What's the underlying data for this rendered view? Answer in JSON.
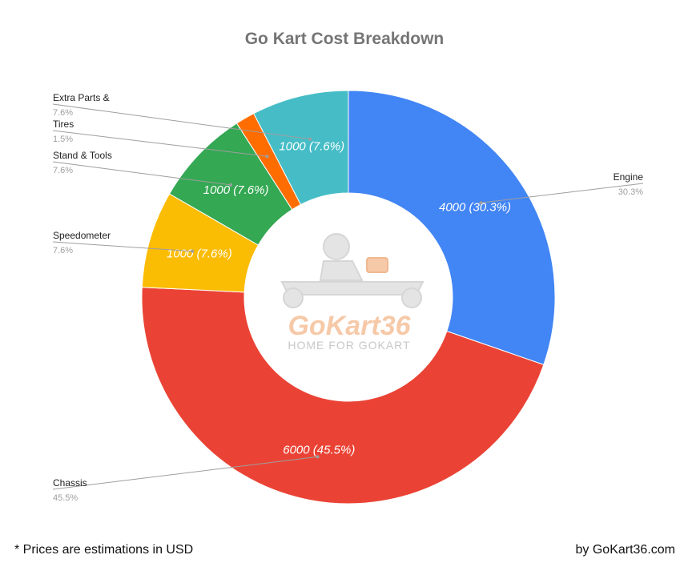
{
  "chart_data": {
    "type": "pie",
    "variant": "donut",
    "title": "Go Kart Cost Breakdown",
    "slices": [
      {
        "name": "Engine",
        "value": 4000,
        "label": "4000 (30.3%)",
        "pct_label": "30.3%",
        "color": "#4285f4"
      },
      {
        "name": "Chassis",
        "value": 6000,
        "label": "6000 (45.5%)",
        "pct_label": "45.5%",
        "color": "#ea4335"
      },
      {
        "name": "Speedometer",
        "value": 1000,
        "label": "1000 (7.6%)",
        "pct_label": "7.6%",
        "color": "#fbbc04"
      },
      {
        "name": "Stand & Tools",
        "value": 1000,
        "label": "1000 (7.6%)",
        "pct_label": "7.6%",
        "color": "#34a853"
      },
      {
        "name": "Tires",
        "value": 200,
        "label": "",
        "pct_label": "1.5%",
        "color": "#ff6d01"
      },
      {
        "name": "Extra Parts &",
        "value": 1000,
        "label": "1000 (7.6%)",
        "pct_label": "7.6%",
        "color": "#46bdc6"
      }
    ]
  },
  "watermark": {
    "brand": "GoKart36",
    "tagline": "HOME FOR GOKART"
  },
  "footer": {
    "note": "* Prices are estimations in USD",
    "credit": "by GoKart36.com"
  }
}
